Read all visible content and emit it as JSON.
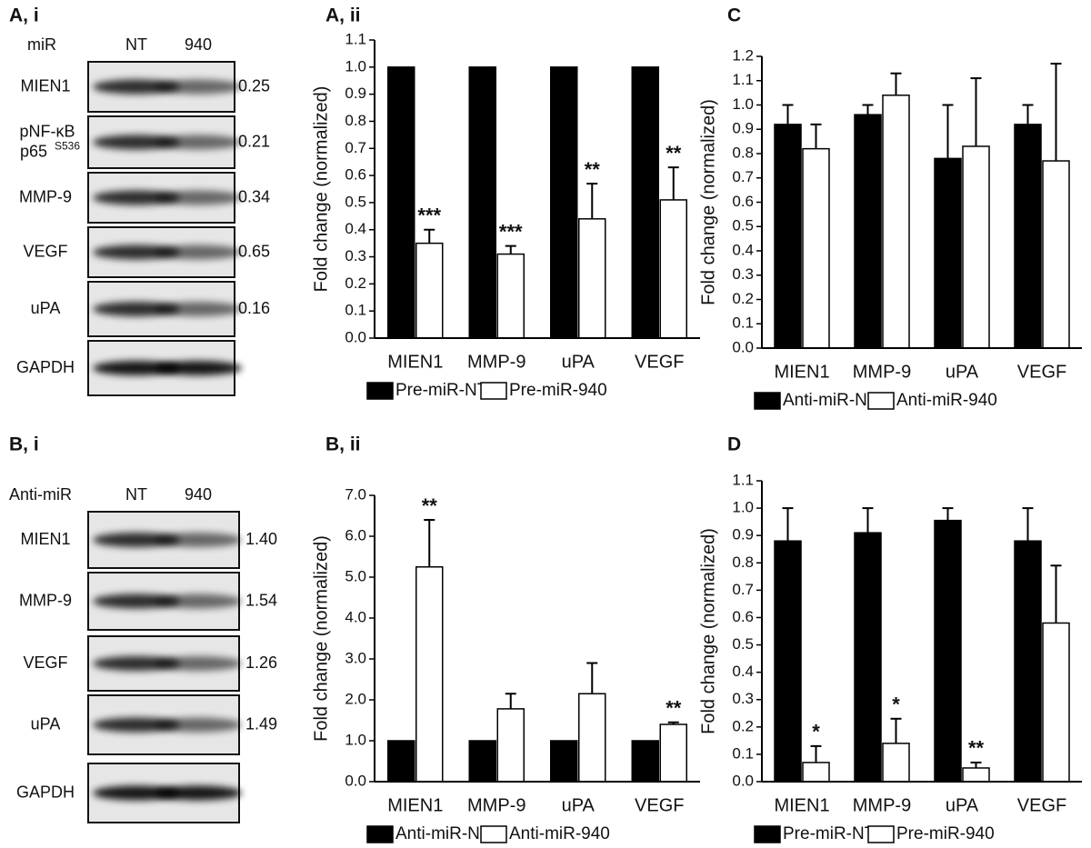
{
  "blots": [
    {
      "title": "A, i",
      "row_header": "miR",
      "lanes": [
        "NT",
        "940"
      ],
      "rows": [
        {
          "label": "MIEN1",
          "value": "0.25"
        },
        {
          "label": "pNF-κB",
          "label_line2": "p65",
          "superscript": "S536",
          "value": "0.21"
        },
        {
          "label": "MMP-9",
          "value": "0.34"
        },
        {
          "label": "VEGF",
          "value": "0.65"
        },
        {
          "label": "uPA",
          "value": "0.16"
        },
        {
          "label": "GAPDH"
        }
      ]
    },
    {
      "title": "B, i",
      "row_header": "Anti-miR",
      "lanes": [
        "NT",
        "940"
      ],
      "rows": [
        {
          "label": "MIEN1",
          "value": "1.40"
        },
        {
          "label": "MMP-9",
          "value": "1.54"
        },
        {
          "label": "VEGF",
          "value": "1.26"
        },
        {
          "label": "uPA",
          "value": "1.49"
        },
        {
          "label": "GAPDH"
        }
      ]
    }
  ],
  "chart_data": [
    {
      "type": "bar",
      "title": "A, ii",
      "y_label": "Fold change (normalized)",
      "categories": [
        "MIEN1",
        "MMP-9",
        "uPA",
        "VEGF"
      ],
      "series": [
        {
          "name": "Pre-miR-NT",
          "color": "#000000",
          "values": [
            1,
            1,
            1,
            1
          ]
        },
        {
          "name": "Pre-miR-940",
          "color": "#ffffff",
          "values": [
            0.35,
            0.31,
            0.44,
            0.51
          ],
          "errors": [
            0.05,
            0.03,
            0.13,
            0.12
          ]
        }
      ],
      "annotations": [
        "***",
        "***",
        "**",
        "**"
      ],
      "ylim": [
        0,
        1.1
      ],
      "yticks": [
        {
          "value": 0,
          "label": "0.0"
        },
        0.1,
        0.2,
        0.3,
        0.4,
        0.5,
        0.6,
        0.7,
        0.8,
        0.9,
        {
          "value": 1,
          "label": "1.0"
        },
        1.1
      ]
    },
    {
      "type": "bar",
      "title": "B, ii",
      "y_label": "Fold change (normalized)",
      "categories": [
        "MIEN1",
        "MMP-9",
        "uPA",
        "VEGF"
      ],
      "series": [
        {
          "name": "Anti-miR-NT",
          "color": "#000000",
          "values": [
            1,
            1,
            1,
            1
          ]
        },
        {
          "name": "Anti-miR-940",
          "color": "#ffffff",
          "values": [
            5.25,
            1.78,
            2.15,
            1.4
          ],
          "errors": [
            1.15,
            0.37,
            0.75,
            0.05
          ]
        }
      ],
      "annotations": [
        "**",
        null,
        null,
        "**"
      ],
      "ylim": [
        0,
        7
      ],
      "yticks": [
        {
          "value": 0,
          "label": "0.0"
        },
        {
          "value": 1,
          "label": "1.0"
        },
        {
          "value": 2,
          "label": "2.0"
        },
        {
          "value": 3,
          "label": "3.0"
        },
        {
          "value": 4,
          "label": "4.0"
        },
        {
          "value": 5,
          "label": "5.0"
        },
        {
          "value": 6,
          "label": "6.0"
        },
        {
          "value": 7,
          "label": "7.0"
        }
      ]
    },
    {
      "type": "bar",
      "title": "C",
      "y_label": "Fold change (normalized)",
      "categories": [
        "MIEN1",
        "MMP-9",
        "uPA",
        "VEGF"
      ],
      "series": [
        {
          "name": "Anti-miR-NT",
          "color": "#000000",
          "values": [
            0.92,
            0.96,
            0.78,
            0.92
          ],
          "errors": [
            0.08,
            0.04,
            0.22,
            0.08
          ]
        },
        {
          "name": "Anti-miR-940",
          "color": "#ffffff",
          "values": [
            0.82,
            1.04,
            0.83,
            0.77
          ],
          "errors": [
            0.1,
            0.09,
            0.28,
            0.4
          ]
        }
      ],
      "ylim": [
        0,
        1.2
      ],
      "yticks": [
        {
          "value": 0,
          "label": "0.0"
        },
        0.1,
        0.2,
        0.3,
        0.4,
        0.5,
        0.6,
        0.7,
        0.8,
        0.9,
        {
          "value": 1,
          "label": "1.0"
        },
        1.1,
        1.2
      ]
    },
    {
      "type": "bar",
      "title": "D",
      "y_label": "Fold change (normalized)",
      "categories": [
        "MIEN1",
        "MMP-9",
        "uPA",
        "VEGF"
      ],
      "series": [
        {
          "name": "Pre-miR-NT",
          "color": "#000000",
          "values": [
            0.88,
            0.91,
            0.955,
            0.88
          ],
          "errors": [
            0.12,
            0.09,
            0.045,
            0.12
          ]
        },
        {
          "name": "Pre-miR-940",
          "color": "#ffffff",
          "values": [
            0.07,
            0.14,
            0.05,
            0.58
          ],
          "errors": [
            0.06,
            0.09,
            0.02,
            0.21
          ]
        }
      ],
      "annotations": [
        "*",
        "*",
        "**",
        null
      ],
      "ylim": [
        0,
        1.1
      ],
      "yticks": [
        {
          "value": 0,
          "label": "0.0"
        },
        0.1,
        0.2,
        0.3,
        0.4,
        0.5,
        0.6,
        0.7,
        0.8,
        0.9,
        {
          "value": 1,
          "label": "1.0"
        },
        1.1
      ]
    }
  ]
}
